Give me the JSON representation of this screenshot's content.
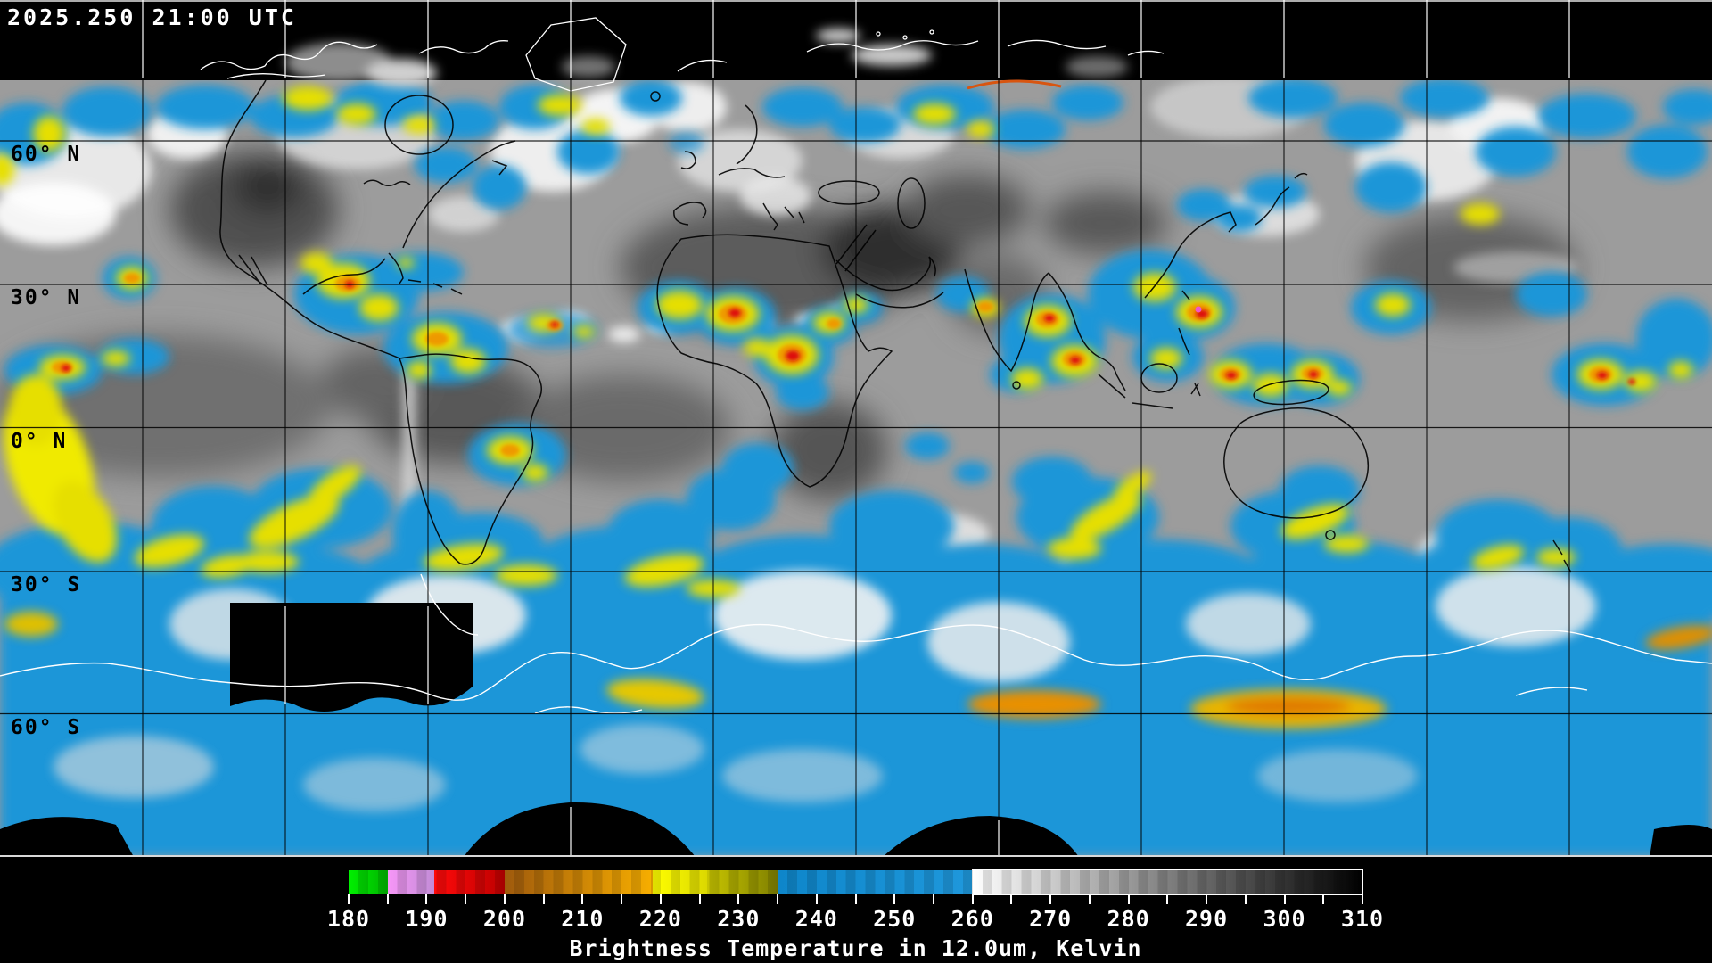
{
  "header": {
    "timestamp": "2025.250 21:00 UTC"
  },
  "map": {
    "lat_labels": [
      {
        "id": "60n",
        "label": "60° N"
      },
      {
        "id": "30n",
        "label": "30° N"
      },
      {
        "id": "0n",
        "label": "0° N"
      },
      {
        "id": "30s",
        "label": "30° S"
      },
      {
        "id": "60s",
        "label": "60° S"
      }
    ]
  },
  "colorbar": {
    "min": 180,
    "max": 310,
    "caption": "Brightness Temperature in 12.0um, Kelvin",
    "labels": [
      "180",
      "190",
      "200",
      "210",
      "220",
      "230",
      "240",
      "250",
      "260",
      "270",
      "280",
      "290",
      "300",
      "310"
    ],
    "ticks": [
      180,
      185,
      190,
      195,
      200,
      205,
      210,
      215,
      220,
      225,
      230,
      235,
      240,
      245,
      250,
      255,
      260,
      265,
      270,
      275,
      280,
      285,
      290,
      295,
      300,
      305,
      310
    ],
    "segments": [
      {
        "from": 180,
        "to": 185,
        "colors": [
          "#00f000",
          "#00b400"
        ]
      },
      {
        "from": 185,
        "to": 191,
        "colors": [
          "#f796f7",
          "#c28cd7"
        ]
      },
      {
        "from": 191,
        "to": 200,
        "colors": [
          "#ff0a0a",
          "#bd0000"
        ]
      },
      {
        "from": 200,
        "to": 219,
        "colors": [
          "#9f5a0c",
          "#f7ae00"
        ]
      },
      {
        "from": 219,
        "to": 226,
        "colors": [
          "#ffff00",
          "#dcd800"
        ]
      },
      {
        "from": 226,
        "to": 235,
        "colors": [
          "#c9c600",
          "#7f7f00"
        ]
      },
      {
        "from": 235,
        "to": 260,
        "colors": [
          "#0e86ca",
          "#1f98dc"
        ]
      },
      {
        "from": 260,
        "to": 310,
        "colors": [
          "#ffffff",
          "#000000"
        ],
        "outlined": true
      }
    ]
  }
}
